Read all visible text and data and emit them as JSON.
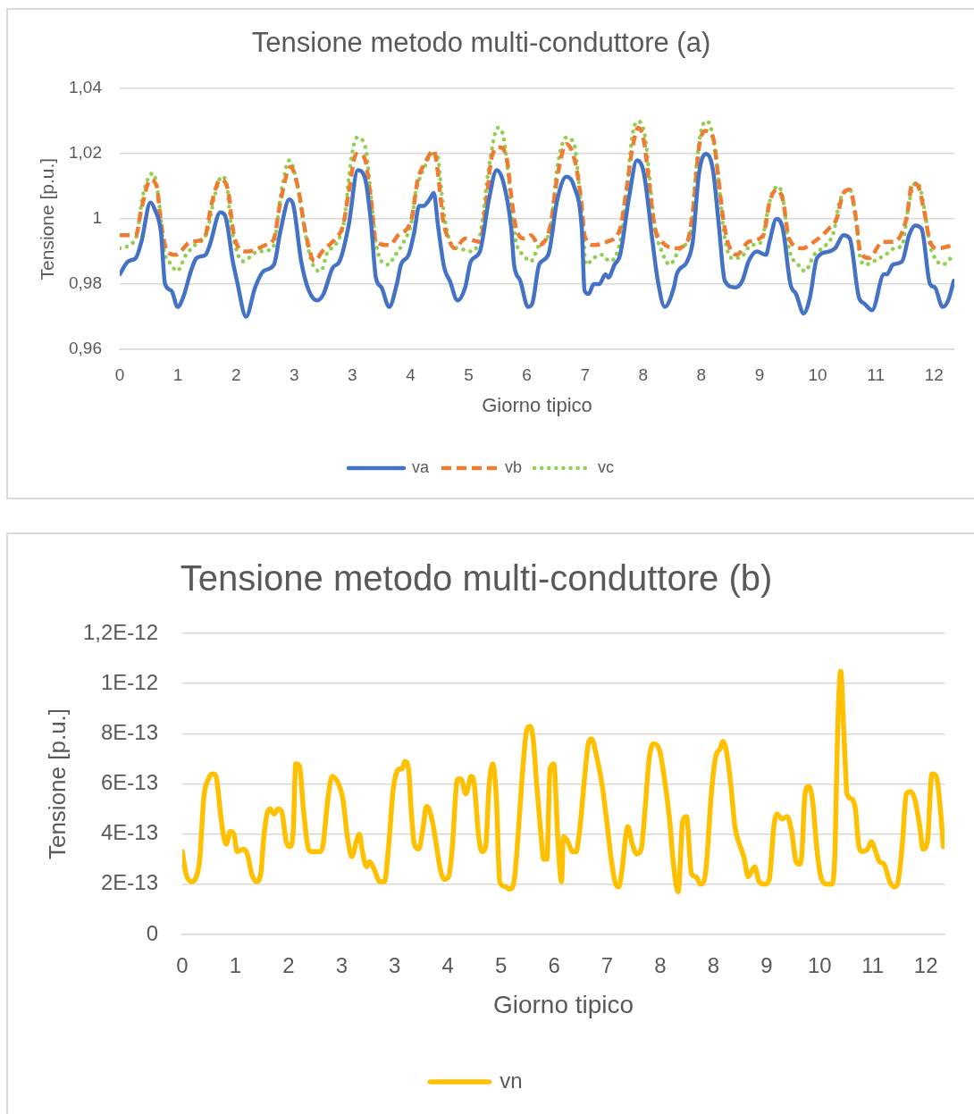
{
  "chart_data": [
    {
      "type": "line",
      "title": "Tensione metodo multi-conduttore (a)",
      "xlabel": "Giorno tipico",
      "ylabel": "Tensione [p.u.]",
      "xlim": [
        0,
        11.9583
      ],
      "xticks": [
        {
          "value": 0,
          "label": "0"
        },
        {
          "value": 0.8333,
          "label": "1"
        },
        {
          "value": 1.6667,
          "label": "2"
        },
        {
          "value": 2.5,
          "label": "3"
        },
        {
          "value": 3.3333,
          "label": "3"
        },
        {
          "value": 4.1667,
          "label": "4"
        },
        {
          "value": 5,
          "label": "5"
        },
        {
          "value": 5.8333,
          "label": "6"
        },
        {
          "value": 6.6667,
          "label": "7"
        },
        {
          "value": 7.5,
          "label": "8"
        },
        {
          "value": 8.3333,
          "label": "8"
        },
        {
          "value": 9.1667,
          "label": "9"
        },
        {
          "value": 10,
          "label": "10"
        },
        {
          "value": 10.8333,
          "label": "11"
        },
        {
          "value": 11.6667,
          "label": "12"
        }
      ],
      "ylim": [
        0.96,
        1.04
      ],
      "yticks": [
        {
          "value": 0.96,
          "label": "0,96"
        },
        {
          "value": 0.98,
          "label": "0,98"
        },
        1,
        {
          "value": 1.02,
          "label": "1,02"
        },
        {
          "value": 1.04,
          "label": "1,04"
        }
      ],
      "grid": "y",
      "legend": "bottom",
      "marker": "none",
      "series": [
        {
          "name": "va",
          "color": "#4472c4",
          "line_style": "solid",
          "x": [
            0,
            0.12,
            0.23,
            0.31,
            0.44,
            0.5,
            0.59,
            0.65,
            0.74,
            0.83,
            0.91,
            1.02,
            1.1,
            1.23,
            1.29,
            1.44,
            1.51,
            1.62,
            1.68,
            1.81,
            1.94,
            2.06,
            2.21,
            2.3,
            2.43,
            2.49,
            2.6,
            2.71,
            2.83,
            2.92,
            3.05,
            3.15,
            3.28,
            3.41,
            3.52,
            3.6,
            3.67,
            3.75,
            3.86,
            3.97,
            4.03,
            4.14,
            4.22,
            4.29,
            4.35,
            4.44,
            4.5,
            4.56,
            4.65,
            4.73,
            4.84,
            4.95,
            5.03,
            5.16,
            5.29,
            5.4,
            5.5,
            5.61,
            5.65,
            5.74,
            5.85,
            5.91,
            6.01,
            6.14,
            6.27,
            6.4,
            6.51,
            6.62,
            6.66,
            6.72,
            6.79,
            6.87,
            6.96,
            7,
            7.09,
            7.17,
            7.3,
            7.41,
            7.51,
            7.64,
            7.71,
            7.81,
            7.94,
            7.98,
            8.13,
            8.21,
            8.3,
            8.4,
            8.5,
            8.58,
            8.67,
            8.82,
            8.92,
            9.01,
            9.13,
            9.26,
            9.31,
            9.41,
            9.5,
            9.61,
            9.69,
            9.8,
            9.89,
            9.99,
            10.16,
            10.25,
            10.37,
            10.46,
            10.59,
            10.67,
            10.78,
            10.95,
            10.99,
            11.08,
            11.21,
            11.31,
            11.4,
            11.49,
            11.61,
            11.68,
            11.79,
            11.87,
            11.95
          ],
          "values": [
            0.983,
            0.987,
            0.988,
            0.993,
            1.005,
            1.003,
            0.996,
            0.98,
            0.978,
            0.973,
            0.976,
            0.984,
            0.988,
            0.989,
            0.992,
            1.002,
            1.001,
            0.987,
            0.981,
            0.97,
            0.979,
            0.984,
            0.986,
            0.996,
            1.006,
            1.004,
            0.987,
            0.978,
            0.975,
            0.977,
            0.985,
            0.987,
            0.998,
            1.015,
            1.012,
            0.999,
            0.982,
            0.979,
            0.973,
            0.98,
            0.986,
            0.989,
            0.996,
            1.004,
            1.004,
            1.006,
            1.008,
            0.998,
            0.985,
            0.981,
            0.975,
            0.979,
            0.987,
            0.99,
            1.006,
            1.015,
            1.011,
            0.997,
            0.986,
            0.981,
            0.973,
            0.974,
            0.986,
            0.989,
            1.006,
            1.013,
            1.01,
            0.997,
            0.978,
            0.977,
            0.98,
            0.98,
            0.983,
            0.982,
            0.986,
            0.989,
            1.007,
            1.018,
            1.014,
            0.992,
            0.981,
            0.973,
            0.979,
            0.983,
            0.987,
            0.993,
            1.014,
            1.02,
            1.015,
            0.999,
            0.981,
            0.979,
            0.981,
            0.987,
            0.99,
            0.989,
            0.993,
            1,
            0.997,
            0.98,
            0.977,
            0.971,
            0.976,
            0.988,
            0.99,
            0.991,
            0.995,
            0.994,
            0.976,
            0.974,
            0.972,
            0.983,
            0.983,
            0.986,
            0.987,
            0.995,
            0.998,
            0.997,
            0.98,
            0.979,
            0.973,
            0.975,
            0.981
          ]
        },
        {
          "name": "vb",
          "color": "#ed7d31",
          "line_style": "dashed",
          "x": [
            0,
            0.23,
            0.31,
            0.44,
            0.53,
            0.59,
            0.68,
            0.8,
            1.02,
            1.21,
            1.32,
            1.44,
            1.55,
            1.62,
            1.68,
            1.83,
            2.09,
            2.21,
            2.3,
            2.45,
            2.56,
            2.66,
            2.79,
            2.9,
            3.09,
            3.2,
            3.28,
            3.39,
            3.5,
            3.6,
            3.67,
            3.86,
            3.99,
            4.18,
            4.27,
            4.37,
            4.5,
            4.56,
            4.63,
            4.69,
            4.8,
            4.95,
            5.16,
            5.25,
            5.33,
            5.44,
            5.55,
            5.61,
            5.68,
            5.8,
            5.89,
            6.01,
            6.17,
            6.27,
            6.4,
            6.53,
            6.62,
            6.66,
            6.79,
            6.98,
            7.17,
            7.26,
            7.34,
            7.43,
            7.51,
            7.6,
            7.67,
            7.73,
            7.96,
            8.13,
            8.21,
            8.3,
            8.39,
            8.5,
            8.58,
            8.64,
            8.71,
            8.84,
            9.01,
            9.22,
            9.31,
            9.41,
            9.5,
            9.59,
            9.78,
            9.95,
            10.16,
            10.27,
            10.37,
            10.46,
            10.55,
            10.61,
            10.74,
            10.93,
            11.1,
            11.27,
            11.36,
            11.44,
            11.53,
            11.61,
            11.72,
            11.95
          ],
          "values": [
            0.995,
            0.995,
            1.003,
            1.012,
            1.01,
            0.999,
            0.99,
            0.989,
            0.993,
            0.994,
            1.005,
            1.012,
            1.009,
            0.997,
            0.992,
            0.99,
            0.992,
            0.994,
            1.005,
            1.016,
            1.009,
            0.996,
            0.987,
            0.99,
            0.994,
            0.998,
            1.008,
            1.02,
            1.019,
            1.006,
            0.993,
            0.992,
            0.995,
            1,
            1.012,
            1.017,
            1.021,
            1.014,
            1,
            0.995,
            0.991,
            0.994,
            0.993,
            1.005,
            1.019,
            1.022,
            1.018,
            1.007,
            0.997,
            0.994,
            0.995,
            0.992,
            0.998,
            1.013,
            1.023,
            1.017,
            1.004,
            0.995,
            0.992,
            0.993,
            0.997,
            1.009,
            1.021,
            1.028,
            1.024,
            1.008,
            0.997,
            0.994,
            0.991,
            0.993,
            1.002,
            1.022,
            1.027,
            1.025,
            1.012,
            1.001,
            0.993,
            0.989,
            0.993,
            0.995,
            1.005,
            1.009,
            1.006,
            0.994,
            0.991,
            0.993,
            0.997,
            1,
            1.008,
            1.009,
            1,
            0.99,
            0.988,
            0.993,
            0.993,
            1,
            1.011,
            1.01,
            1.002,
            0.993,
            0.991,
            0.992
          ]
        },
        {
          "name": "vc",
          "color": "#92d050",
          "line_style": "dotted",
          "x": [
            0,
            0.23,
            0.33,
            0.42,
            0.48,
            0.57,
            0.63,
            0.74,
            0.82,
            0.95,
            1.08,
            1.25,
            1.36,
            1.46,
            1.53,
            1.59,
            1.68,
            1.76,
            1.98,
            2.19,
            2.32,
            2.43,
            2.53,
            2.64,
            2.71,
            2.79,
            2.88,
            2.98,
            3.09,
            3.22,
            3.3,
            3.4,
            3.52,
            3.6,
            3.67,
            3.75,
            3.86,
            3.92,
            4.07,
            4.18,
            4.24,
            4.37,
            4.48,
            4.56,
            4.59,
            4.65,
            4.76,
            4.86,
            5.06,
            5.18,
            5.29,
            5.42,
            5.5,
            5.57,
            5.63,
            5.69,
            5.78,
            5.89,
            6.01,
            6.17,
            6.27,
            6.4,
            6.51,
            6.57,
            6.64,
            6.68,
            6.79,
            6.91,
            7.02,
            7.17,
            7.26,
            7.34,
            7.43,
            7.53,
            7.58,
            7.67,
            7.75,
            7.88,
            8.03,
            8.18,
            8.26,
            8.32,
            8.4,
            8.47,
            8.56,
            8.62,
            8.67,
            8.77,
            8.88,
            9.05,
            9.2,
            9.26,
            9.35,
            9.44,
            9.52,
            9.58,
            9.72,
            9.82,
            9.95,
            10.12,
            10.23,
            10.31,
            10.37,
            10.46,
            10.56,
            10.61,
            10.69,
            10.8,
            10.97,
            11.1,
            11.21,
            11.31,
            11.4,
            11.46,
            11.55,
            11.61,
            11.68,
            11.79,
            11.91
          ],
          "values": [
            0.991,
            0.994,
            1.007,
            1.013,
            1.014,
            1.004,
            0.991,
            0.986,
            0.984,
            0.989,
            0.992,
            0.996,
            1.007,
            1.013,
            1.011,
            0.999,
            0.99,
            0.987,
            0.99,
            0.991,
            1.009,
            1.018,
            1.012,
            0.998,
            0.99,
            0.985,
            0.984,
            0.99,
            0.992,
            1,
            1.016,
            1.025,
            1.022,
            1.007,
            0.993,
            0.987,
            0.986,
            0.988,
            0.993,
            0.999,
            1.008,
            1.016,
            1.02,
            1.019,
            1.013,
            1.001,
            0.992,
            0.991,
            0.99,
            0.997,
            1.016,
            1.028,
            1.025,
            1.013,
            1,
            0.992,
            0.989,
            0.987,
            0.992,
            0.997,
            1.016,
            1.025,
            1.023,
            1.013,
            0.996,
            0.986,
            0.988,
            0.989,
            0.987,
            0.993,
            1.007,
            1.025,
            1.03,
            1.025,
            1.015,
            0.997,
            0.991,
            0.986,
            0.991,
            0.996,
            1.016,
            1.026,
            1.03,
            1.028,
            1.016,
            1.003,
            0.994,
            0.988,
            0.988,
            0.992,
            0.993,
            1,
            1.008,
            1.01,
            1.004,
            0.992,
            0.986,
            0.984,
            0.989,
            0.992,
            0.996,
            1.005,
            1.008,
            1.009,
            0.998,
            0.988,
            0.986,
            0.987,
            0.989,
            0.991,
            0.992,
            1.005,
            1.011,
            1.01,
            1,
            0.992,
            0.988,
            0.986,
            0.988
          ]
        }
      ]
    },
    {
      "type": "line",
      "title": "Tensione metodo multi-conduttore (b)",
      "xlabel": "Giorno tipico",
      "ylabel": "Tensione [p.u.]",
      "xlim": [
        0,
        11.9583
      ],
      "xticks": [
        {
          "value": 0,
          "label": "0"
        },
        {
          "value": 0.8333,
          "label": "1"
        },
        {
          "value": 1.6667,
          "label": "2"
        },
        {
          "value": 2.5,
          "label": "3"
        },
        {
          "value": 3.3333,
          "label": "3"
        },
        {
          "value": 4.1667,
          "label": "4"
        },
        {
          "value": 5,
          "label": "5"
        },
        {
          "value": 5.8333,
          "label": "6"
        },
        {
          "value": 6.6667,
          "label": "7"
        },
        {
          "value": 7.5,
          "label": "8"
        },
        {
          "value": 8.3333,
          "label": "8"
        },
        {
          "value": 9.1667,
          "label": "9"
        },
        {
          "value": 10,
          "label": "10"
        },
        {
          "value": 10.8333,
          "label": "11"
        },
        {
          "value": 11.6667,
          "label": "12"
        }
      ],
      "ylim": [
        0,
        1.2e-12
      ],
      "yticks": [
        0,
        {
          "value": 2e-13,
          "label": "2E-13"
        },
        {
          "value": 4e-13,
          "label": "4E-13"
        },
        {
          "value": 6e-13,
          "label": "6E-13"
        },
        {
          "value": 8e-13,
          "label": "8E-13"
        },
        {
          "value": 1e-12,
          "label": "1E-12"
        },
        {
          "value": 1.2e-12,
          "label": "1,2E-12"
        }
      ],
      "grid": "y",
      "legend": "bottom",
      "marker": "none",
      "series": [
        {
          "name": "vn",
          "color": "#ffc000",
          "line_style": "solid",
          "x": [
            0,
            0.06,
            0.15,
            0.22,
            0.27,
            0.34,
            0.41,
            0.48,
            0.53,
            0.6,
            0.65,
            0.69,
            0.75,
            0.81,
            0.86,
            0.96,
            1.02,
            1.09,
            1.16,
            1.23,
            1.28,
            1.33,
            1.38,
            1.44,
            1.5,
            1.56,
            1.63,
            1.69,
            1.74,
            1.78,
            1.84,
            1.9,
            1.98,
            2.03,
            2.1,
            2.17,
            2.21,
            2.28,
            2.35,
            2.45,
            2.52,
            2.59,
            2.66,
            2.73,
            2.78,
            2.82,
            2.89,
            2.94,
            3.01,
            3.1,
            3.17,
            3.24,
            3.31,
            3.41,
            3.45,
            3.49,
            3.55,
            3.59,
            3.64,
            3.71,
            3.78,
            3.83,
            3.87,
            3.94,
            3.99,
            4.04,
            4.11,
            4.18,
            4.23,
            4.32,
            4.37,
            4.45,
            4.53,
            4.58,
            4.65,
            4.7,
            4.76,
            4.81,
            4.87,
            4.93,
            4.98,
            5.07,
            5.14,
            5.21,
            5.25,
            5.33,
            5.4,
            5.45,
            5.5,
            5.56,
            5.63,
            5.67,
            5.72,
            5.77,
            5.83,
            5.89,
            5.95,
            5.98,
            6.05,
            6.12,
            6.18,
            6.24,
            6.31,
            6.37,
            6.42,
            6.5,
            6.59,
            6.66,
            6.73,
            6.8,
            6.85,
            6.89,
            6.99,
            7.06,
            7.13,
            7.2,
            7.27,
            7.32,
            7.39,
            7.48,
            7.57,
            7.64,
            7.71,
            7.78,
            7.85,
            7.91,
            7.99,
            8.06,
            8.13,
            8.18,
            8.22,
            8.3,
            8.37,
            8.44,
            8.48,
            8.53,
            8.6,
            8.67,
            8.74,
            8.81,
            8.88,
            8.98,
            9.05,
            9.14,
            9.21,
            9.28,
            9.33,
            9.41,
            9.49,
            9.56,
            9.63,
            9.68,
            9.72,
            9.77,
            9.83,
            9.89,
            9.96,
            10.03,
            10.12,
            10.19,
            10.24,
            10.28,
            10.33,
            10.38,
            10.43,
            10.5,
            10.56,
            10.61,
            10.67,
            10.75,
            10.81,
            10.85,
            10.94,
            11.01,
            11.1,
            11.17,
            11.22,
            11.29,
            11.36,
            11.43,
            11.5,
            11.57,
            11.62,
            11.69,
            11.76,
            11.83,
            11.9,
            11.94
          ],
          "values": [
            3.3e-13,
            2.4e-13,
            2.1e-13,
            2.3e-13,
            2.9e-13,
            5.5e-13,
            6.2e-13,
            6.4e-13,
            6.3e-13,
            4.8e-13,
            3.9e-13,
            3.6e-13,
            4.1e-13,
            4e-13,
            3.3e-13,
            3.4e-13,
            3.2e-13,
            2.4e-13,
            2.1e-13,
            2.4e-13,
            3.9e-13,
            4.8e-13,
            5e-13,
            4.8e-13,
            5e-13,
            4.9e-13,
            3.7e-13,
            3.5e-13,
            4.1e-13,
            6.8e-13,
            6.7e-13,
            5e-13,
            3.4e-13,
            3.3e-13,
            3.3e-13,
            3.3e-13,
            3.6e-13,
            5.3e-13,
            6.3e-13,
            6e-13,
            5.4e-13,
            3.9e-13,
            3.1e-13,
            3.7e-13,
            4e-13,
            3.4e-13,
            2.7e-13,
            2.9e-13,
            2.6e-13,
            2.1e-13,
            2.1e-13,
            3.6e-13,
            5.8e-13,
            6.6e-13,
            6.6e-13,
            6.9e-13,
            6.6e-13,
            5e-13,
            3.6e-13,
            3.4e-13,
            4.3e-13,
            5.1e-13,
            5e-13,
            4.3e-13,
            3.5e-13,
            2.7e-13,
            2.2e-13,
            2.3e-13,
            3.3e-13,
            6.2e-13,
            6.2e-13,
            5.6e-13,
            6.3e-13,
            6e-13,
            3.9e-13,
            3.3e-13,
            3.5e-13,
            5.8e-13,
            6.8e-13,
            5.3e-13,
            2.1e-13,
            1.9e-13,
            1.8e-13,
            2.2e-13,
            3.3e-13,
            6.2e-13,
            8.1e-13,
            8.3e-13,
            7.9e-13,
            6e-13,
            3.9e-13,
            3e-13,
            3e-13,
            6.6e-13,
            6.8e-13,
            3.9e-13,
            2.1e-13,
            3.9e-13,
            3.7e-13,
            3.3e-13,
            3.3e-13,
            4.3e-13,
            6.2e-13,
            7.6e-13,
            7.8e-13,
            7.1e-13,
            5.9e-13,
            4.5e-13,
            3e-13,
            2e-13,
            1.9e-13,
            2.4e-13,
            4.3e-13,
            3.6e-13,
            3.2e-13,
            3.4e-13,
            5.3e-13,
            6.9e-13,
            7.6e-13,
            7.4e-13,
            6.1e-13,
            4.7e-13,
            2.7e-13,
            1.7e-13,
            4.5e-13,
            4.7e-13,
            2.4e-13,
            2.3e-13,
            2e-13,
            2.1e-13,
            2.7e-13,
            5.6e-13,
            7.1e-13,
            7.4e-13,
            7.7e-13,
            7.4e-13,
            6.1e-13,
            4.3e-13,
            3.6e-13,
            3.1e-13,
            2.3e-13,
            2.7e-13,
            2.1e-13,
            2e-13,
            2.2e-13,
            4.3e-13,
            4.8e-13,
            4.6e-13,
            4.7e-13,
            4.1e-13,
            2.9e-13,
            2.8e-13,
            3.2e-13,
            5.6e-13,
            5.9e-13,
            5.3e-13,
            3.3e-13,
            2.2e-13,
            2e-13,
            2e-13,
            3.3e-13,
            8e-13,
            1.05e-12,
            8e-13,
            5.6e-13,
            5.4e-13,
            5e-13,
            3.6e-13,
            3.3e-13,
            3.4e-13,
            3.7e-13,
            3.5e-13,
            2.9e-13,
            2.8e-13,
            2.1e-13,
            1.9e-13,
            2e-13,
            3.4e-13,
            5.6e-13,
            5.7e-13,
            5.3e-13,
            4.3e-13,
            3.4e-13,
            3.7e-13,
            6.4e-13,
            6.3e-13,
            4.8e-13,
            3.5e-13
          ]
        }
      ]
    }
  ]
}
